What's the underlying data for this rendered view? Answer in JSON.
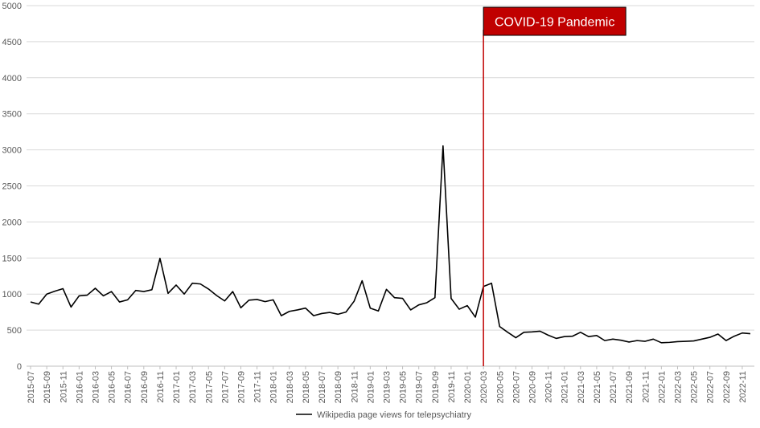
{
  "chart_data": {
    "type": "line",
    "title": "",
    "xlabel": "",
    "ylabel": "",
    "ylim": [
      0,
      5000
    ],
    "yticks": [
      0,
      500,
      1000,
      1500,
      2000,
      2500,
      3000,
      3500,
      4000,
      4500,
      5000
    ],
    "grid": true,
    "legend_position": "bottom-center",
    "x_tick_labels": [
      "2015-07",
      "2015-09",
      "2015-11",
      "2016-01",
      "2016-03",
      "2016-05",
      "2016-07",
      "2016-09",
      "2016-11",
      "2017-01",
      "2017-03",
      "2017-05",
      "2017-07",
      "2017-09",
      "2017-11",
      "2018-01",
      "2018-03",
      "2018-05",
      "2018-07",
      "2018-09",
      "2018-11",
      "2019-01",
      "2019-03",
      "2019-05",
      "2019-07",
      "2019-09",
      "2019-11",
      "2020-01",
      "2020-03",
      "2020-05",
      "2020-07",
      "2020-09",
      "2020-11",
      "2021-01",
      "2021-03",
      "2021-05",
      "2021-07",
      "2021-09",
      "2021-11",
      "2022-01",
      "2022-03",
      "2022-05",
      "2022-07",
      "2022-09",
      "2022-11"
    ],
    "series": [
      {
        "name": "Wikipedia page views for telepsychiatry",
        "color": "#000000",
        "x": [
          "2015-07",
          "2015-08",
          "2015-09",
          "2015-10",
          "2015-11",
          "2015-12",
          "2016-01",
          "2016-02",
          "2016-03",
          "2016-04",
          "2016-05",
          "2016-06",
          "2016-07",
          "2016-08",
          "2016-09",
          "2016-10",
          "2016-11",
          "2016-12",
          "2017-01",
          "2017-02",
          "2017-03",
          "2017-04",
          "2017-05",
          "2017-06",
          "2017-07",
          "2017-08",
          "2017-09",
          "2017-10",
          "2017-11",
          "2017-12",
          "2018-01",
          "2018-02",
          "2018-03",
          "2018-04",
          "2018-05",
          "2018-06",
          "2018-07",
          "2018-08",
          "2018-09",
          "2018-10",
          "2018-11",
          "2018-12",
          "2019-01",
          "2019-02",
          "2019-03",
          "2019-04",
          "2019-05",
          "2019-06",
          "2019-07",
          "2019-08",
          "2019-09",
          "2019-10",
          "2019-11",
          "2019-12",
          "2020-01",
          "2020-02",
          "2020-03",
          "2020-04",
          "2020-05",
          "2020-06",
          "2020-07",
          "2020-08",
          "2020-09",
          "2020-10",
          "2020-11",
          "2020-12",
          "2021-01",
          "2021-02",
          "2021-03",
          "2021-04",
          "2021-05",
          "2021-06",
          "2021-07",
          "2021-08",
          "2021-09",
          "2021-10",
          "2021-11",
          "2021-12",
          "2022-01",
          "2022-02",
          "2022-03",
          "2022-04",
          "2022-05",
          "2022-06",
          "2022-07",
          "2022-08",
          "2022-09",
          "2022-10",
          "2022-11",
          "2022-12"
        ],
        "values": [
          890,
          860,
          1000,
          1040,
          1075,
          820,
          975,
          985,
          1080,
          975,
          1035,
          890,
          920,
          1050,
          1035,
          1060,
          1495,
          1010,
          1125,
          1000,
          1150,
          1140,
          1070,
          980,
          905,
          1035,
          810,
          915,
          925,
          895,
          920,
          700,
          760,
          780,
          805,
          700,
          730,
          745,
          720,
          750,
          900,
          1185,
          805,
          765,
          1065,
          950,
          940,
          780,
          850,
          880,
          950,
          3055,
          940,
          790,
          840,
          680,
          1105,
          1150,
          550,
          470,
          395,
          470,
          475,
          485,
          430,
          385,
          410,
          415,
          470,
          410,
          425,
          355,
          375,
          360,
          335,
          355,
          345,
          375,
          325,
          330,
          340,
          345,
          350,
          375,
          400,
          445,
          355,
          415,
          460,
          450
        ]
      }
    ],
    "annotations": [
      {
        "type": "vertical-line",
        "x": "2020-03",
        "color": "#c00000"
      },
      {
        "type": "label-box",
        "text": "COVID-19 Pandemic",
        "x": "2020-03",
        "y": 5000,
        "background": "#c00000",
        "text_color": "#ffffff"
      }
    ]
  }
}
